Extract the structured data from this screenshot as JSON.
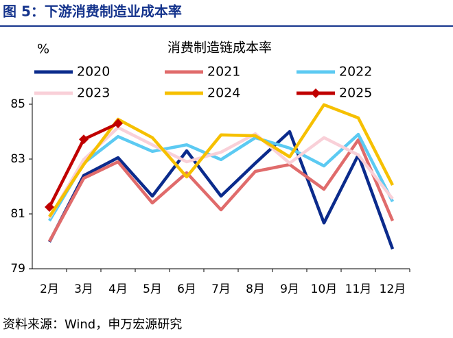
{
  "figure_title": "图 5：下游消费制造业成本率",
  "source": "资料来源：Wind，申万宏源研究",
  "chart_data": {
    "type": "line",
    "title": "消费制造链成本率",
    "y_label": "%",
    "categories": [
      "2月",
      "3月",
      "4月",
      "5月",
      "6月",
      "7月",
      "8月",
      "9月",
      "10月",
      "11月",
      "12月"
    ],
    "series": [
      {
        "name": "2020",
        "color": "#0b2b8c",
        "values": [
          79.98,
          82.4,
          83.05,
          81.65,
          83.3,
          81.65,
          82.85,
          84.0,
          80.67,
          83.15,
          79.72
        ]
      },
      {
        "name": "2021",
        "color": "#e06b6b",
        "values": [
          80.0,
          82.3,
          82.9,
          81.4,
          82.5,
          81.15,
          82.55,
          82.8,
          81.9,
          83.7,
          80.75
        ]
      },
      {
        "name": "2022",
        "color": "#5ccaf2",
        "values": [
          80.75,
          82.85,
          83.82,
          83.28,
          83.52,
          82.98,
          83.78,
          83.4,
          82.75,
          83.9,
          81.45
        ]
      },
      {
        "name": "2023",
        "color": "#f9d0d8",
        "values": [
          80.85,
          82.98,
          84.15,
          83.52,
          82.9,
          83.25,
          83.92,
          82.85,
          83.78,
          83.15,
          81.55
        ]
      },
      {
        "name": "2024",
        "color": "#f6c000",
        "values": [
          80.9,
          82.8,
          84.45,
          83.78,
          82.35,
          83.88,
          83.85,
          83.08,
          84.98,
          84.5,
          82.05
        ]
      },
      {
        "name": "2025",
        "color": "#c00000",
        "marker": "diamond",
        "values": [
          81.25,
          83.72,
          84.3,
          null,
          null,
          null,
          null,
          null,
          null,
          null,
          null
        ]
      }
    ],
    "ylim": [
      79,
      85
    ],
    "yticks": [
      79,
      81,
      83,
      85
    ],
    "grid": false,
    "legend": "top"
  }
}
